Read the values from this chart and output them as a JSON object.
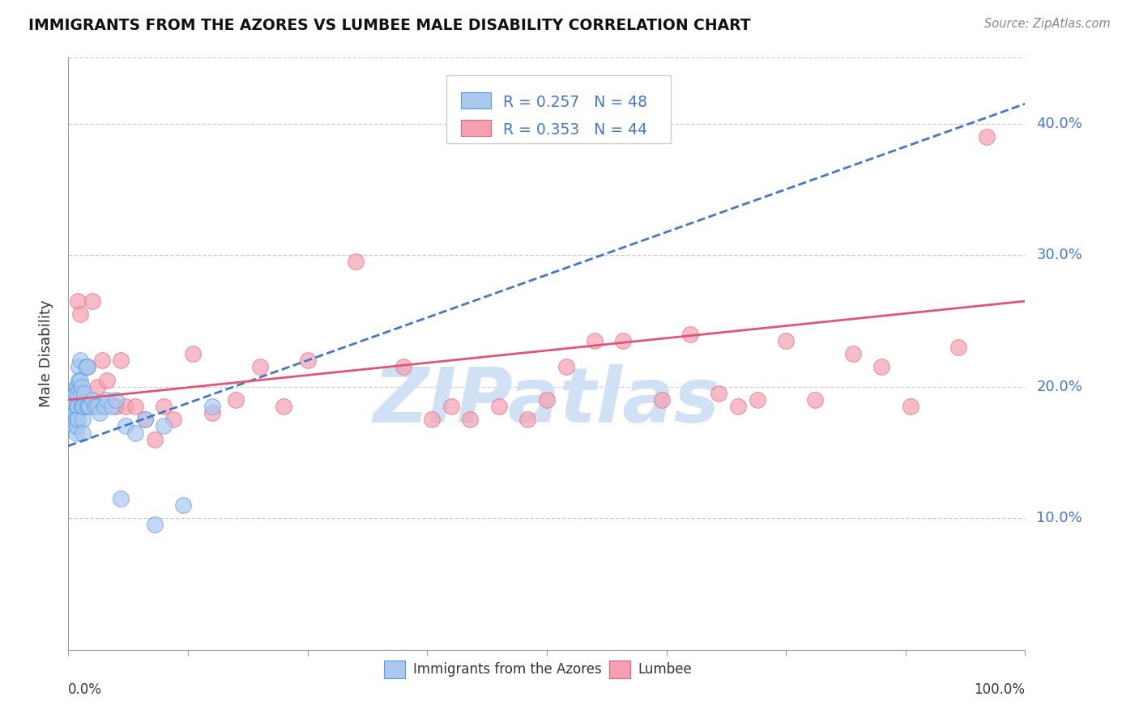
{
  "title": "IMMIGRANTS FROM THE AZORES VS LUMBEE MALE DISABILITY CORRELATION CHART",
  "source": "Source: ZipAtlas.com",
  "ylabel": "Male Disability",
  "ytick_labels": [
    "10.0%",
    "20.0%",
    "30.0%",
    "40.0%"
  ],
  "ytick_values": [
    0.1,
    0.2,
    0.3,
    0.4
  ],
  "xlim": [
    0.0,
    1.0
  ],
  "ylim": [
    0.0,
    0.45
  ],
  "legend_r_blue": "0.257",
  "legend_n_blue": "48",
  "legend_r_pink": "0.353",
  "legend_n_pink": "44",
  "blue_scatter_color": "#aac8f0",
  "blue_edge_color": "#5599dd",
  "pink_scatter_color": "#f4a0b0",
  "pink_edge_color": "#e06080",
  "blue_line_color": "#4477cc",
  "pink_line_color": "#e05575",
  "watermark_color": "#d0e0f5",
  "legend_text_color": "#4477cc",
  "grid_color": "#cccccc",
  "title_color": "#111111",
  "source_color": "#888888",
  "blue_scatter_x": [
    0.005,
    0.005,
    0.006,
    0.006,
    0.007,
    0.007,
    0.008,
    0.008,
    0.008,
    0.009,
    0.009,
    0.01,
    0.01,
    0.01,
    0.01,
    0.011,
    0.011,
    0.012,
    0.012,
    0.013,
    0.013,
    0.014,
    0.014,
    0.015,
    0.015,
    0.016,
    0.017,
    0.018,
    0.019,
    0.02,
    0.021,
    0.022,
    0.025,
    0.028,
    0.03,
    0.033,
    0.038,
    0.04,
    0.045,
    0.05,
    0.055,
    0.06,
    0.07,
    0.08,
    0.09,
    0.1,
    0.12,
    0.15
  ],
  "blue_scatter_y": [
    0.19,
    0.185,
    0.175,
    0.17,
    0.195,
    0.18,
    0.2,
    0.175,
    0.165,
    0.185,
    0.17,
    0.2,
    0.195,
    0.185,
    0.175,
    0.215,
    0.205,
    0.22,
    0.205,
    0.195,
    0.185,
    0.2,
    0.185,
    0.175,
    0.165,
    0.185,
    0.195,
    0.215,
    0.185,
    0.215,
    0.185,
    0.185,
    0.19,
    0.185,
    0.185,
    0.18,
    0.185,
    0.19,
    0.185,
    0.19,
    0.115,
    0.17,
    0.165,
    0.175,
    0.095,
    0.17,
    0.11,
    0.185
  ],
  "pink_scatter_x": [
    0.01,
    0.012,
    0.02,
    0.025,
    0.03,
    0.035,
    0.04,
    0.05,
    0.055,
    0.06,
    0.07,
    0.08,
    0.09,
    0.1,
    0.11,
    0.13,
    0.15,
    0.175,
    0.2,
    0.225,
    0.25,
    0.3,
    0.35,
    0.38,
    0.4,
    0.42,
    0.45,
    0.48,
    0.5,
    0.52,
    0.55,
    0.58,
    0.62,
    0.65,
    0.68,
    0.7,
    0.72,
    0.75,
    0.78,
    0.82,
    0.85,
    0.88,
    0.93,
    0.96
  ],
  "pink_scatter_y": [
    0.265,
    0.255,
    0.215,
    0.265,
    0.2,
    0.22,
    0.205,
    0.185,
    0.22,
    0.185,
    0.185,
    0.175,
    0.16,
    0.185,
    0.175,
    0.225,
    0.18,
    0.19,
    0.215,
    0.185,
    0.22,
    0.295,
    0.215,
    0.175,
    0.185,
    0.175,
    0.185,
    0.175,
    0.19,
    0.215,
    0.235,
    0.235,
    0.19,
    0.24,
    0.195,
    0.185,
    0.19,
    0.235,
    0.19,
    0.225,
    0.215,
    0.185,
    0.23,
    0.39
  ],
  "blue_line_x0": 0.0,
  "blue_line_y0": 0.155,
  "blue_line_x1": 1.0,
  "blue_line_y1": 0.415,
  "pink_line_x0": 0.0,
  "pink_line_y0": 0.19,
  "pink_line_x1": 1.0,
  "pink_line_y1": 0.265
}
